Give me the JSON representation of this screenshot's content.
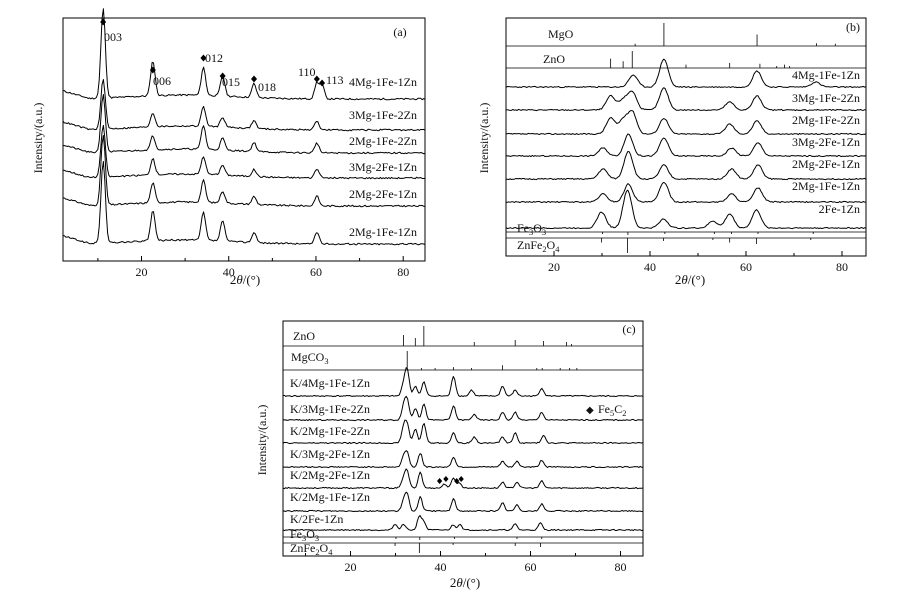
{
  "chart_data": [
    {
      "type": "line",
      "panel": "(a)",
      "xlabel": "2θ/(°)",
      "xlabel_main": "2",
      "xlabel_italic": "θ",
      "xlabel_unit": "/(°)",
      "ylabel": "Intensity/(a.u.)",
      "xlim": [
        2,
        85
      ],
      "xticks": [
        "20",
        "40",
        "60",
        "80"
      ],
      "series": [
        {
          "name": "4Mg-1Fe-1Zn",
          "peaks": [
            [
              11.2,
              90
            ],
            [
              22.6,
              35
            ],
            [
              34.2,
              28
            ],
            [
              38.6,
              20
            ],
            [
              45.8,
              14
            ],
            [
              60.2,
              16
            ],
            [
              61.4,
              14
            ]
          ]
        },
        {
          "name": "3Mg-1Fe-2Zn",
          "peaks": [
            [
              11.2,
              50
            ],
            [
              22.6,
              14
            ],
            [
              34.2,
              20
            ],
            [
              38.6,
              10
            ],
            [
              45.8,
              8
            ],
            [
              60.2,
              9
            ]
          ]
        },
        {
          "name": "2Mg-1Fe-2Zn",
          "peaks": [
            [
              11.2,
              58
            ],
            [
              22.6,
              14
            ],
            [
              34.2,
              24
            ],
            [
              38.6,
              12
            ],
            [
              45.8,
              9
            ],
            [
              60.2,
              10
            ]
          ]
        },
        {
          "name": "3Mg-2Fe-1Zn",
          "peaks": [
            [
              11.2,
              52
            ],
            [
              22.6,
              16
            ],
            [
              34.2,
              18
            ],
            [
              38.6,
              10
            ],
            [
              45.8,
              7
            ],
            [
              60.2,
              9
            ]
          ]
        },
        {
          "name": "2Mg-2Fe-1Zn",
          "peaks": [
            [
              11.2,
              70
            ],
            [
              22.6,
              20
            ],
            [
              34.2,
              22
            ],
            [
              38.6,
              12
            ],
            [
              45.8,
              8
            ],
            [
              60.2,
              10
            ]
          ]
        },
        {
          "name": "2Mg-1Fe-1Zn",
          "peaks": [
            [
              11.2,
              82
            ],
            [
              22.6,
              30
            ],
            [
              34.2,
              28
            ],
            [
              38.6,
              20
            ],
            [
              45.8,
              10
            ],
            [
              60.2,
              12
            ]
          ]
        }
      ],
      "annotations": [
        {
          "label": "003",
          "x": 11.2
        },
        {
          "label": "006",
          "x": 22.6
        },
        {
          "label": "012",
          "x": 34.2
        },
        {
          "label": "015",
          "x": 38.6
        },
        {
          "label": "018",
          "x": 45.8
        },
        {
          "label": "110",
          "x": 60.2
        },
        {
          "label": "113",
          "x": 61.4
        }
      ]
    },
    {
      "type": "line",
      "panel": "(b)",
      "xlabel": "2θ/(°)",
      "xlabel_main": "2",
      "xlabel_italic": "θ",
      "xlabel_unit": "/(°)",
      "ylabel": "Intensity/(a.u.)",
      "xlim": [
        10,
        85
      ],
      "xticks": [
        "20",
        "40",
        "60",
        "80"
      ],
      "reference_top": [
        {
          "name": "MgO",
          "sticks": [
            [
              36.9,
              0.1
            ],
            [
              42.9,
              1.0
            ],
            [
              62.3,
              0.5
            ],
            [
              74.7,
              0.12
            ],
            [
              78.6,
              0.1
            ]
          ]
        },
        {
          "name": "ZnO",
          "sticks": [
            [
              31.8,
              0.55
            ],
            [
              34.4,
              0.4
            ],
            [
              36.3,
              1.0
            ],
            [
              47.5,
              0.2
            ],
            [
              56.6,
              0.3
            ],
            [
              62.9,
              0.25
            ],
            [
              66.4,
              0.05
            ],
            [
              68.0,
              0.2
            ],
            [
              69.1,
              0.1
            ]
          ]
        }
      ],
      "series": [
        {
          "name": "4Mg-1Fe-1Zn",
          "peaks": [
            [
              36.5,
              12
            ],
            [
              42.9,
              28
            ],
            [
              62.3,
              16
            ],
            [
              74.5,
              5
            ]
          ]
        },
        {
          "name": "3Mg-1Fe-2Zn",
          "peaks": [
            [
              31.8,
              14
            ],
            [
              34.4,
              10
            ],
            [
              36.3,
              18
            ],
            [
              42.9,
              22
            ],
            [
              56.6,
              8
            ],
            [
              62.3,
              14
            ]
          ]
        },
        {
          "name": "2Mg-1Fe-2Zn",
          "peaks": [
            [
              31.8,
              16
            ],
            [
              34.4,
              14
            ],
            [
              36.3,
              22
            ],
            [
              42.9,
              16
            ],
            [
              56.6,
              10
            ],
            [
              62.3,
              13
            ]
          ]
        },
        {
          "name": "3Mg-2Fe-1Zn",
          "peaks": [
            [
              30.2,
              8
            ],
            [
              35.5,
              22
            ],
            [
              42.9,
              18
            ],
            [
              57.0,
              8
            ],
            [
              62.5,
              13
            ]
          ]
        },
        {
          "name": "2Mg-2Fe-1Zn",
          "peaks": [
            [
              30.2,
              10
            ],
            [
              35.5,
              28
            ],
            [
              42.9,
              14
            ],
            [
              57.0,
              10
            ],
            [
              62.5,
              14
            ]
          ]
        },
        {
          "name": "2Mg-1Fe-1Zn",
          "peaks": [
            [
              30.2,
              8
            ],
            [
              35.5,
              18
            ],
            [
              42.9,
              20
            ],
            [
              57.0,
              8
            ],
            [
              62.5,
              14
            ]
          ]
        },
        {
          "name": "2Fe-1Zn",
          "peaks": [
            [
              29.9,
              16
            ],
            [
              35.3,
              38
            ],
            [
              42.8,
              9
            ],
            [
              53.1,
              7
            ],
            [
              56.6,
              14
            ],
            [
              62.2,
              18
            ]
          ]
        }
      ],
      "reference_bottom": [
        {
          "name": "Fe₃O₃",
          "name_base": "Fe",
          "name_sub1": "3",
          "name_mid": "O",
          "name_sub2": "3",
          "sticks": [
            [
              30.1,
              0.3
            ],
            [
              35.4,
              1.0
            ],
            [
              43.1,
              0.2
            ],
            [
              53.4,
              0.1
            ],
            [
              57.0,
              0.3
            ],
            [
              62.5,
              0.4
            ],
            [
              74.0,
              0.08
            ]
          ]
        },
        {
          "name": "ZnFe₂O₄",
          "name_base": "ZnFe",
          "name_sub1": "2",
          "name_mid": "O",
          "name_sub2": "4",
          "sticks": [
            [
              29.9,
              0.3
            ],
            [
              35.3,
              1.0
            ],
            [
              42.8,
              0.2
            ],
            [
              53.1,
              0.1
            ],
            [
              56.6,
              0.3
            ],
            [
              62.2,
              0.4
            ],
            [
              73.5,
              0.05
            ]
          ]
        }
      ]
    },
    {
      "type": "line",
      "panel": "(c)",
      "xlabel": "2θ/(°)",
      "xlabel_main": "2",
      "xlabel_italic": "θ",
      "xlabel_unit": "/(°)",
      "ylabel": "Intensity/(a.u.)",
      "xlim": [
        5,
        85
      ],
      "xticks": [
        "20",
        "40",
        "60",
        "80"
      ],
      "legend": {
        "symbol": "◆",
        "text": "Fe₅C₂",
        "text_base": "Fe",
        "text_sub1": "5",
        "text_mid": "C",
        "text_sub2": "2"
      },
      "reference_top": [
        {
          "name": "ZnO",
          "sticks": [
            [
              31.8,
              0.55
            ],
            [
              34.4,
              0.4
            ],
            [
              36.3,
              1.0
            ],
            [
              47.5,
              0.2
            ],
            [
              56.6,
              0.3
            ],
            [
              62.9,
              0.25
            ],
            [
              68.0,
              0.2
            ],
            [
              69.1,
              0.1
            ]
          ]
        },
        {
          "name": "MgCO₃",
          "name_base": "MgCO",
          "name_sub1": "3",
          "sticks": [
            [
              32.6,
              1.0
            ],
            [
              35.8,
              0.1
            ],
            [
              38.8,
              0.08
            ],
            [
              42.9,
              0.15
            ],
            [
              46.9,
              0.08
            ],
            [
              53.8,
              0.25
            ],
            [
              61.4,
              0.06
            ],
            [
              62.6,
              0.06
            ],
            [
              66.6,
              0.05
            ],
            [
              68.7,
              0.08
            ],
            [
              70.3,
              0.06
            ]
          ]
        }
      ],
      "series": [
        {
          "name": "K/4Mg-1Fe-1Zn",
          "peaks": [
            [
              31.8,
              12
            ],
            [
              32.6,
              26
            ],
            [
              34.4,
              10
            ],
            [
              36.3,
              14
            ],
            [
              42.9,
              20
            ],
            [
              46.9,
              6
            ],
            [
              53.8,
              10
            ],
            [
              56.6,
              6
            ],
            [
              62.5,
              8
            ]
          ]
        },
        {
          "name": "K/3Mg-1Fe-2Zn",
          "peaks": [
            [
              31.8,
              14
            ],
            [
              32.6,
              20
            ],
            [
              34.4,
              12
            ],
            [
              36.3,
              16
            ],
            [
              42.9,
              14
            ],
            [
              47.5,
              6
            ],
            [
              53.8,
              8
            ],
            [
              56.6,
              8
            ],
            [
              62.5,
              8
            ]
          ]
        },
        {
          "name": "K/2Mg-1Fe-2Zn",
          "peaks": [
            [
              31.8,
              16
            ],
            [
              32.6,
              18
            ],
            [
              34.4,
              14
            ],
            [
              36.3,
              20
            ],
            [
              42.9,
              10
            ],
            [
              47.5,
              6
            ],
            [
              53.8,
              6
            ],
            [
              56.6,
              10
            ],
            [
              62.9,
              8
            ]
          ]
        },
        {
          "name": "K/3Mg-2Fe-1Zn",
          "peaks": [
            [
              31.8,
              10
            ],
            [
              32.6,
              14
            ],
            [
              35.5,
              14
            ],
            [
              42.9,
              10
            ],
            [
              53.8,
              6
            ],
            [
              57.0,
              6
            ],
            [
              62.5,
              7
            ]
          ]
        },
        {
          "name": "K/2Mg-2Fe-1Zn",
          "peaks": [
            [
              31.8,
              10
            ],
            [
              32.6,
              16
            ],
            [
              35.5,
              16
            ],
            [
              40.9,
              4
            ],
            [
              42.9,
              10
            ],
            [
              44.2,
              5
            ],
            [
              53.8,
              6
            ],
            [
              57.0,
              6
            ],
            [
              62.5,
              7
            ]
          ]
        },
        {
          "name": "K/2Mg-1Fe-1Zn",
          "peaks": [
            [
              31.8,
              10
            ],
            [
              32.6,
              16
            ],
            [
              35.5,
              14
            ],
            [
              42.9,
              12
            ],
            [
              53.8,
              8
            ],
            [
              57.0,
              6
            ],
            [
              62.5,
              7
            ]
          ]
        },
        {
          "name": "K/2Fe-1Zn",
          "peaks": [
            [
              29.9,
              6
            ],
            [
              31.8,
              6
            ],
            [
              35.3,
              14
            ],
            [
              36.3,
              8
            ],
            [
              42.8,
              5
            ],
            [
              44.3,
              6
            ],
            [
              56.6,
              6
            ],
            [
              62.2,
              7
            ]
          ]
        }
      ],
      "markers": [
        {
          "series": "K/2Mg-2Fe-1Zn",
          "x": [
            39.8,
            41.2,
            43.6,
            44.6
          ]
        }
      ],
      "reference_bottom": [
        {
          "name": "Fe₃O₃",
          "name_base": "Fe",
          "name_sub1": "3",
          "name_mid": "O",
          "name_sub2": "3",
          "sticks": [
            [
              30.1,
              0.3
            ],
            [
              35.4,
              1.0
            ],
            [
              43.1,
              0.2
            ],
            [
              57.0,
              0.3
            ],
            [
              62.5,
              0.4
            ]
          ]
        },
        {
          "name": "ZnFe₂O₄",
          "name_base": "ZnFe",
          "name_sub1": "2",
          "name_mid": "O",
          "name_sub2": "4",
          "sticks": [
            [
              29.9,
              0.3
            ],
            [
              35.3,
              1.0
            ],
            [
              42.8,
              0.2
            ],
            [
              56.6,
              0.3
            ],
            [
              62.2,
              0.4
            ]
          ]
        }
      ]
    }
  ]
}
